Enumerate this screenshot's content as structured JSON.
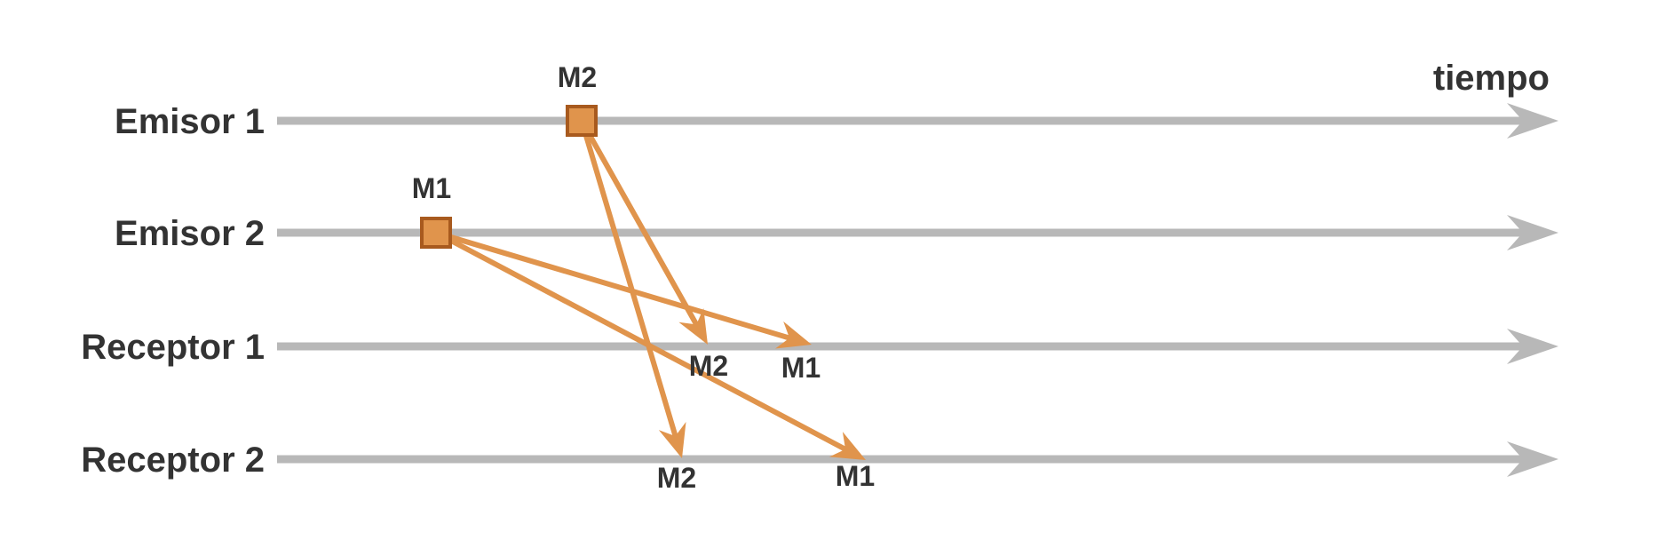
{
  "colors": {
    "timeline": "#b8b8b8",
    "message": "#e0944c",
    "event_fill": "#e0944c",
    "event_border": "#a85a1e",
    "text": "#333333"
  },
  "time_label": "tiempo",
  "lanes": [
    {
      "id": "emisor-1",
      "label": "Emisor 1"
    },
    {
      "id": "emisor-2",
      "label": "Emisor 2"
    },
    {
      "id": "receptor-1",
      "label": "Receptor 1"
    },
    {
      "id": "receptor-2",
      "label": "Receptor 2"
    }
  ],
  "send_events": [
    {
      "message": "M2",
      "lane": "emisor-1",
      "label": "M2"
    },
    {
      "message": "M1",
      "lane": "emisor-2",
      "label": "M1"
    }
  ],
  "deliveries": [
    {
      "message": "M2",
      "from": "emisor-1",
      "to": "receptor-1",
      "label": "M2"
    },
    {
      "message": "M1",
      "from": "emisor-2",
      "to": "receptor-1",
      "label": "M1"
    },
    {
      "message": "M2",
      "from": "emisor-1",
      "to": "receptor-2",
      "label": "M2"
    },
    {
      "message": "M1",
      "from": "emisor-2",
      "to": "receptor-2",
      "label": "M1"
    }
  ]
}
